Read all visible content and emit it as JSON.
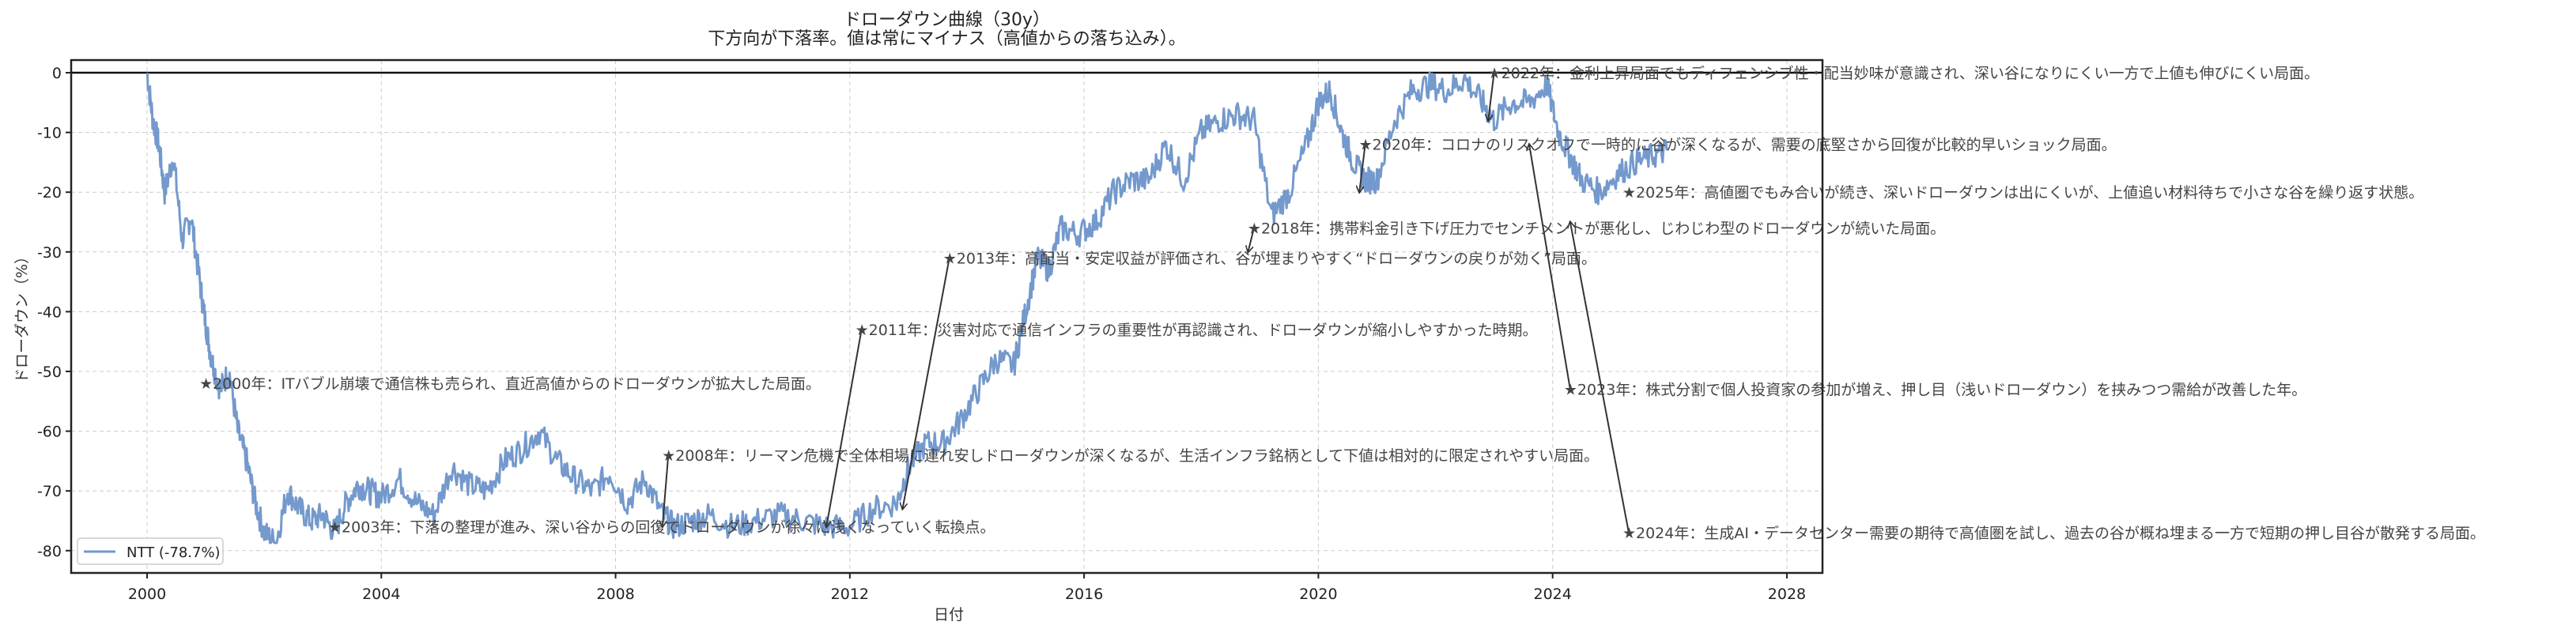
{
  "title": "ドローダウン曲線（30y）",
  "subtitle": "下方向が下落率。値は常にマイナス（高値からの落ち込み）。",
  "xlabel": "日付",
  "ylabel": "ドローダウン（%）",
  "legend": {
    "label": "NTT (-78.7%)",
    "color": "#7499cc"
  },
  "colors": {
    "line": "#7499cc",
    "grid": "#cccccc",
    "axis": "#222222",
    "annotation": "#333333"
  },
  "chart_data": {
    "type": "line",
    "title": "ドローダウン曲線（30y）",
    "subtitle": "下方向が下落率。値は常にマイナス（高値からの落ち込み）。",
    "xlabel": "日付",
    "ylabel": "ドローダウン（%）",
    "xlim": [
      1999.3,
      2028.7
    ],
    "ylim": [
      -84,
      2
    ],
    "xticks": [
      2000,
      2004,
      2008,
      2012,
      2016,
      2020,
      2024,
      2028
    ],
    "yticks": [
      0,
      -10,
      -20,
      -30,
      -40,
      -50,
      -60,
      -70,
      -80
    ],
    "grid": true,
    "legend_position": "lower left",
    "series": [
      {
        "name": "NTT (-78.7%)",
        "x": [
          2000.0,
          2000.1,
          2000.2,
          2000.3,
          2000.45,
          2000.6,
          2000.75,
          2000.9,
          2001.0,
          2001.1,
          2001.25,
          2001.4,
          2001.55,
          2001.7,
          2001.85,
          2002.0,
          2002.2,
          2002.4,
          2002.6,
          2002.8,
          2003.0,
          2003.2,
          2003.4,
          2003.6,
          2003.8,
          2004.0,
          2004.3,
          2004.6,
          2004.9,
          2005.2,
          2005.5,
          2005.8,
          2006.1,
          2006.4,
          2006.7,
          2007.0,
          2007.3,
          2007.6,
          2007.9,
          2008.2,
          2008.5,
          2008.8,
          2009.0,
          2009.3,
          2009.6,
          2010.0,
          2010.4,
          2010.8,
          2011.2,
          2011.6,
          2012.0,
          2012.4,
          2012.8,
          2013.0,
          2013.3,
          2013.6,
          2013.9,
          2014.2,
          2014.5,
          2014.8,
          2015.0,
          2015.2,
          2015.4,
          2015.6,
          2015.9,
          2016.2,
          2016.5,
          2016.8,
          2017.1,
          2017.4,
          2017.7,
          2018.0,
          2018.3,
          2018.6,
          2018.9,
          2019.2,
          2019.5,
          2019.8,
          2020.0,
          2020.2,
          2020.4,
          2020.6,
          2020.8,
          2021.0,
          2021.3,
          2021.6,
          2021.9,
          2022.2,
          2022.5,
          2022.8,
          2023.0,
          2023.3,
          2023.6,
          2023.9,
          2024.1,
          2024.3,
          2024.5,
          2024.8,
          2025.1,
          2025.4,
          2025.7,
          2025.95
        ],
        "values": [
          0,
          -8,
          -12,
          -20,
          -14,
          -28,
          -24,
          -35,
          -42,
          -48,
          -53,
          -50,
          -60,
          -65,
          -72,
          -77,
          -78.7,
          -70,
          -73,
          -75,
          -74,
          -77,
          -72,
          -69,
          -70,
          -71,
          -68,
          -72,
          -74,
          -66,
          -69,
          -70,
          -65,
          -63,
          -60,
          -65,
          -68,
          -70,
          -67,
          -72,
          -68,
          -74,
          -76,
          -75,
          -74,
          -76,
          -75,
          -74,
          -75,
          -76,
          -76,
          -73,
          -72,
          -66,
          -62,
          -62,
          -58,
          -53,
          -48,
          -49,
          -40,
          -31,
          -33,
          -26,
          -27,
          -25,
          -20,
          -18,
          -18,
          -12,
          -18,
          -10,
          -8,
          -7,
          -8,
          -24,
          -20,
          -12,
          -5,
          -3,
          -10,
          -15,
          -18,
          -18,
          -8,
          -3,
          -2,
          -3,
          -1,
          -5,
          -8,
          -5,
          -5,
          -2,
          -10,
          -14,
          -18,
          -20,
          -17,
          -15,
          -14,
          -13
        ]
      }
    ],
    "annotations": [
      {
        "year": 2000,
        "text": "★2000年：ITバブル崩壊で通信株も売られ、直近高値からのドローダウンが拡大した局面。",
        "x": 2001.0,
        "y": -52,
        "arrow_to": null
      },
      {
        "year": 2003,
        "text": "★2003年：下落の整理が進み、深い谷からの回復でドローダウンが徐々に浅くなっていく転換点。",
        "x": 2003.2,
        "y": -76,
        "arrow_to": null
      },
      {
        "year": 2008,
        "text": "★2008年：リーマン危機で全体相場に連れ安しドローダウンが深くなるが、生活インフラ銘柄として下値は相対的に限定されやすい局面。",
        "x": 2008.9,
        "y": -64,
        "arrow_to": [
          2008.8,
          -76
        ]
      },
      {
        "year": 2011,
        "text": "★2011年：災害対応で通信インフラの重要性が再認識され、ドローダウンが縮小しやすかった時期。",
        "x": 2012.2,
        "y": -43,
        "arrow_to": [
          2011.6,
          -76
        ]
      },
      {
        "year": 2013,
        "text": "★2013年：高配当・安定収益が評価され、谷が埋まりやすく“ドローダウンの戻りが効く”局面。",
        "x": 2013.7,
        "y": -31,
        "arrow_to": [
          2012.9,
          -73
        ]
      },
      {
        "year": 2018,
        "text": "★2018年：携帯料金引き下げ圧力でセンチメントが悪化し、じわじわ型のドローダウンが続いた局面。",
        "x": 2018.9,
        "y": -26,
        "arrow_to": [
          2018.8,
          -30
        ]
      },
      {
        "year": 2020,
        "text": "★2020年：コロナのリスクオフで一時的に谷が深くなるが、需要の底堅さから回復が比較的早いショック局面。",
        "x": 2020.8,
        "y": -12,
        "arrow_to": [
          2020.7,
          -20
        ]
      },
      {
        "year": 2022,
        "text": "★2022年：金利上昇局面でもディフェンシブ性・配当妙味が意識され、深い谷になりにくい一方で上値も伸びにくい局面。",
        "x": 2023.0,
        "y": 0,
        "arrow_to": [
          2022.9,
          -8
        ]
      },
      {
        "year": 2023,
        "text": "★2023年：株式分割で個人投資家の参加が増え、押し目（浅いドローダウン）を挟みつつ需給が改善した年。",
        "x": 2024.3,
        "y": -53,
        "arrow_to": [
          2023.6,
          -12
        ]
      },
      {
        "year": 2024,
        "text": "★2024年：生成AI・データセンター需要の期待で高値圏を試し、過去の谷が概ね埋まる一方で短期の押し目谷が散発する局面。",
        "x": 2025.3,
        "y": -77,
        "arrow_to": [
          2024.3,
          -25
        ]
      },
      {
        "year": 2025,
        "text": "★2025年：高値圏でもみ合いが続き、深いドローダウンは出にくいが、上値追い材料待ちで小さな谷を繰り返す状態。",
        "x": 2025.3,
        "y": -20,
        "arrow_to": null
      }
    ]
  }
}
